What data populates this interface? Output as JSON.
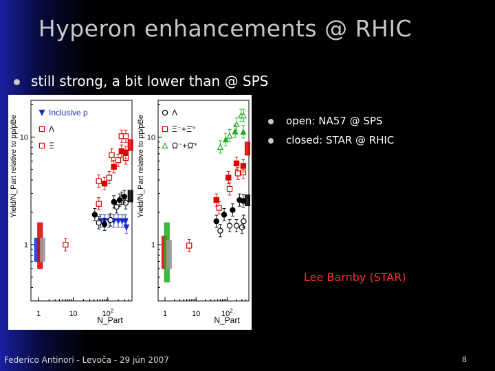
{
  "slide": {
    "title": "Hyperon enhancements @ RHIC",
    "bullet": "still strong, a bit lower than @ SPS",
    "legend_bullets": [
      "open: NA57 @ SPS",
      "closed: STAR @ RHIC"
    ],
    "credit": "Lee Barnby (STAR)",
    "footer_left": "Federico Antinori - Levoča - 29 jún 2007",
    "page_number": "8"
  },
  "colors": {
    "black": "#000000",
    "red": "#dd0000",
    "blue": "#1a2cc8",
    "green": "#22aa22",
    "gray_band": "#999999"
  },
  "chart_data": [
    {
      "type": "scatter",
      "xlabel": "N_Part",
      "ylabel": "Yield/N_Part relative to pp/pBe",
      "xscale": "log",
      "yscale": "log",
      "xlim": [
        0.6,
        500
      ],
      "ylim": [
        0.3,
        22
      ],
      "x_ticks": [
        "1",
        "10",
        "10^2"
      ],
      "y_ticks": [
        "1",
        "10"
      ],
      "series": [
        {
          "name": "Inclusive p",
          "symbol": "triangle-down",
          "color": "#1a2cc8",
          "filled": true,
          "points": [
            [
              62,
              1.66
            ],
            [
              80,
              1.66
            ],
            [
              110,
              1.66
            ],
            [
              150,
              1.66
            ],
            [
              200,
              1.66
            ],
            [
              260,
              1.66
            ],
            [
              320,
              1.66
            ],
            [
              345,
              1.45
            ]
          ]
        },
        {
          "name": "",
          "symbol": "circle",
          "color": "#000000",
          "filled": false,
          "points": [
            [
              55,
              1.6
            ],
            [
              120,
              1.7
            ],
            [
              180,
              2.25
            ],
            [
              250,
              2.7
            ],
            [
              330,
              2.45
            ]
          ]
        },
        {
          "name": "",
          "symbol": "circle",
          "color": "#000000",
          "filled": true,
          "points": [
            [
              42,
              1.9
            ],
            [
              80,
              1.55
            ],
            [
              150,
              2.5
            ],
            [
              220,
              2.6
            ],
            [
              300,
              2.8
            ]
          ]
        },
        {
          "name": "Λ",
          "symbol": "square",
          "color": "#dd0000",
          "filled": false,
          "points": [
            [
              6,
              1.0
            ],
            [
              55,
              2.4
            ],
            [
              110,
              4.2
            ],
            [
              200,
              6.1
            ],
            [
              330,
              6.4
            ]
          ]
        },
        {
          "name": "",
          "symbol": "square",
          "color": "#dd0000",
          "filled": true,
          "points": [
            [
              80,
              3.7
            ],
            [
              150,
              5.3
            ],
            [
              250,
              7.4
            ],
            [
              330,
              7.2
            ]
          ]
        },
        {
          "name": "Ξ",
          "symbol": "square",
          "color": "#dd0000",
          "filled": false,
          "points": [
            [
              55,
              3.9
            ],
            [
              130,
              6.8
            ],
            [
              250,
              10.2
            ],
            [
              330,
              10.2
            ]
          ]
        }
      ],
      "bands": [
        {
          "x": 0.9,
          "ylow": 0.7,
          "yhigh": 1.15,
          "color": "#1a2cc8"
        },
        {
          "x": 1.1,
          "ylow": 0.6,
          "yhigh": 1.6,
          "color": "#dd0000"
        },
        {
          "x": 1.3,
          "ylow": 0.7,
          "yhigh": 1.15,
          "color": "#999999"
        },
        {
          "x": 450,
          "ylow": 2.5,
          "yhigh": 3.2,
          "color": "#000000"
        },
        {
          "x": 450,
          "ylow": 7.5,
          "yhigh": 9.5,
          "color": "#dd0000"
        }
      ]
    },
    {
      "type": "scatter",
      "xlabel": "N_Part",
      "ylabel": "Yield/N_Part relative to pp/pBe",
      "xscale": "log",
      "yscale": "log",
      "xlim": [
        0.6,
        500
      ],
      "ylim": [
        0.3,
        22
      ],
      "x_ticks": [
        "1",
        "10",
        "10^2"
      ],
      "y_ticks": [
        "1",
        "10"
      ],
      "series": [
        {
          "name": "Λ",
          "symbol": "circle",
          "color": "#000000",
          "filled": false,
          "points": [
            [
              60,
              1.35
            ],
            [
              120,
              1.5
            ],
            [
              200,
              1.5
            ],
            [
              300,
              1.45
            ],
            [
              340,
              1.65
            ]
          ]
        },
        {
          "name": "",
          "symbol": "circle",
          "color": "#000000",
          "filled": true,
          "points": [
            [
              45,
              1.65
            ],
            [
              80,
              1.9
            ],
            [
              150,
              2.1
            ],
            [
              250,
              2.6
            ],
            [
              330,
              2.55
            ]
          ]
        },
        {
          "name": "Ξ⁻+Ξ̄⁺",
          "symbol": "square",
          "color": "#dd0000",
          "filled": false,
          "points": [
            [
              6,
              0.98
            ],
            [
              55,
              2.2
            ],
            [
              120,
              3.3
            ],
            [
              220,
              4.6
            ],
            [
              330,
              4.7
            ]
          ]
        },
        {
          "name": "",
          "symbol": "square",
          "color": "#dd0000",
          "filled": true,
          "points": [
            [
              45,
              2.6
            ],
            [
              110,
              4.2
            ],
            [
              200,
              5.7
            ],
            [
              330,
              5.4
            ]
          ]
        },
        {
          "name": "Ω⁻+Ω̄⁺",
          "symbol": "triangle-up",
          "color": "#22aa22",
          "filled": false,
          "points": [
            [
              60,
              8.1
            ],
            [
              120,
              10.3
            ],
            [
              200,
              13.2
            ],
            [
              280,
              15.9
            ],
            [
              340,
              15.9
            ]
          ]
        },
        {
          "name": "",
          "symbol": "triangle-up",
          "color": "#22aa22",
          "filled": true,
          "points": [
            [
              90,
              9.5
            ],
            [
              180,
              11.3
            ],
            [
              330,
              11.2
            ]
          ]
        }
      ],
      "bands": [
        {
          "x": 0.95,
          "ylow": 0.6,
          "yhigh": 1.2,
          "color": "#dd0000"
        },
        {
          "x": 1.15,
          "ylow": 0.45,
          "yhigh": 1.6,
          "color": "#22aa22"
        },
        {
          "x": 1.35,
          "ylow": 0.6,
          "yhigh": 1.1,
          "color": "#999999"
        },
        {
          "x": 450,
          "ylow": 2.3,
          "yhigh": 2.9,
          "color": "#000000"
        },
        {
          "x": 450,
          "ylow": 6.8,
          "yhigh": 9.0,
          "color": "#dd0000"
        }
      ]
    }
  ]
}
